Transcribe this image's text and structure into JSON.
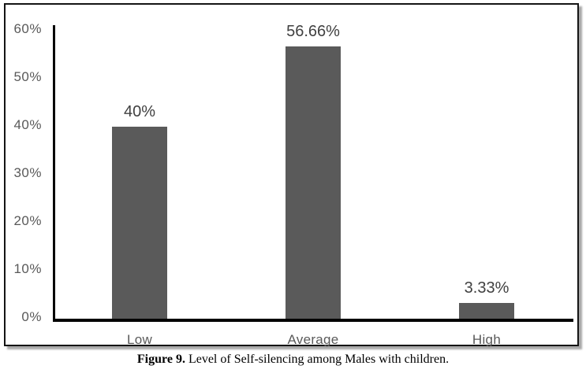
{
  "caption": {
    "label": "Figure 9.",
    "text": " Level of Self-silencing among Males with children."
  },
  "chart_data": {
    "type": "bar",
    "title": "",
    "xlabel": "",
    "ylabel": "",
    "categories": [
      "Low",
      "Average",
      "High"
    ],
    "values": [
      40,
      56.66,
      3.33
    ],
    "value_labels": [
      "40%",
      "56.66%",
      "3.33%"
    ],
    "y_ticks": [
      "0%",
      "10%",
      "20%",
      "30%",
      "40%",
      "50%",
      "60%"
    ],
    "y_tick_values": [
      0,
      10,
      20,
      30,
      40,
      50,
      60
    ],
    "ylim": [
      0,
      60
    ],
    "grid": false,
    "legend": false,
    "bar_color": "#5a5a5a",
    "axis_color": "#000000",
    "tick_label_color": "#595959",
    "data_label_color": "#404040",
    "border_color": "#141414",
    "background_color": "#ffffff"
  }
}
